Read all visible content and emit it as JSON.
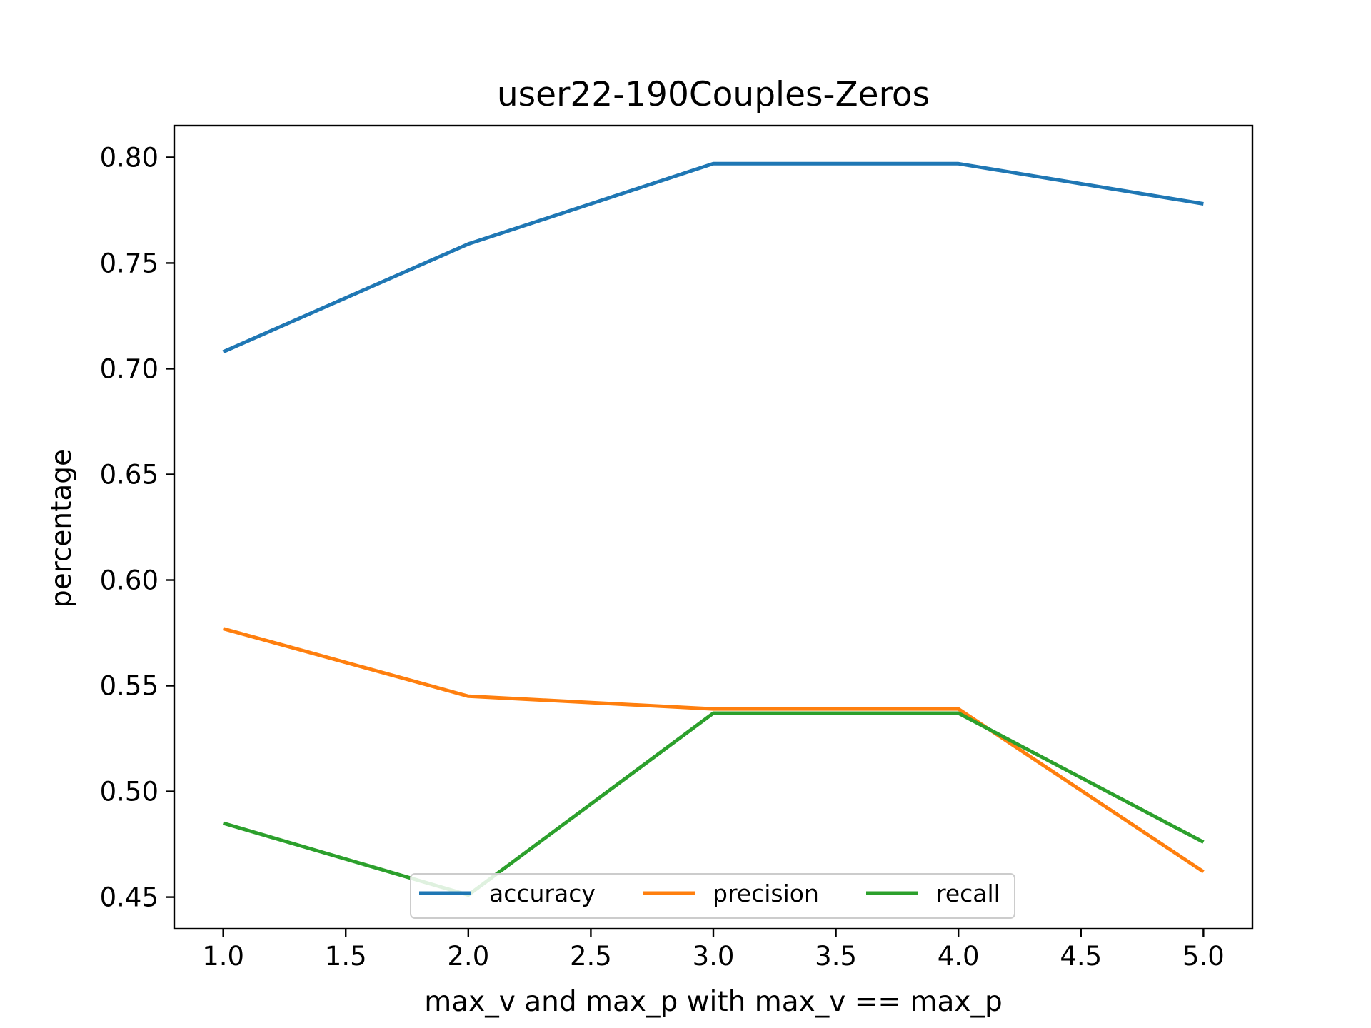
{
  "chart_data": {
    "type": "line",
    "title": "user22-190Couples-Zeros",
    "xlabel": "max_v and max_p with max_v == max_p",
    "ylabel": "percentage",
    "x": [
      1.0,
      2.0,
      3.0,
      4.0,
      5.0
    ],
    "xlim": [
      0.8,
      5.2
    ],
    "ylim": [
      0.435,
      0.815
    ],
    "xticks": [
      "1.0",
      "1.5",
      "2.0",
      "2.5",
      "3.0",
      "3.5",
      "4.0",
      "4.5",
      "5.0"
    ],
    "yticks": [
      "0.45",
      "0.50",
      "0.55",
      "0.60",
      "0.65",
      "0.70",
      "0.75",
      "0.80"
    ],
    "grid": false,
    "legend_position": "lower-center",
    "legend_columns": 3,
    "series": [
      {
        "name": "accuracy",
        "color": "#1f77b4",
        "values": [
          0.708,
          0.759,
          0.797,
          0.797,
          0.778
        ]
      },
      {
        "name": "precision",
        "color": "#ff7f0e",
        "values": [
          0.577,
          0.545,
          0.539,
          0.539,
          0.462
        ]
      },
      {
        "name": "recall",
        "color": "#2ca02c",
        "values": [
          0.485,
          0.451,
          0.537,
          0.537,
          0.476
        ]
      }
    ]
  }
}
